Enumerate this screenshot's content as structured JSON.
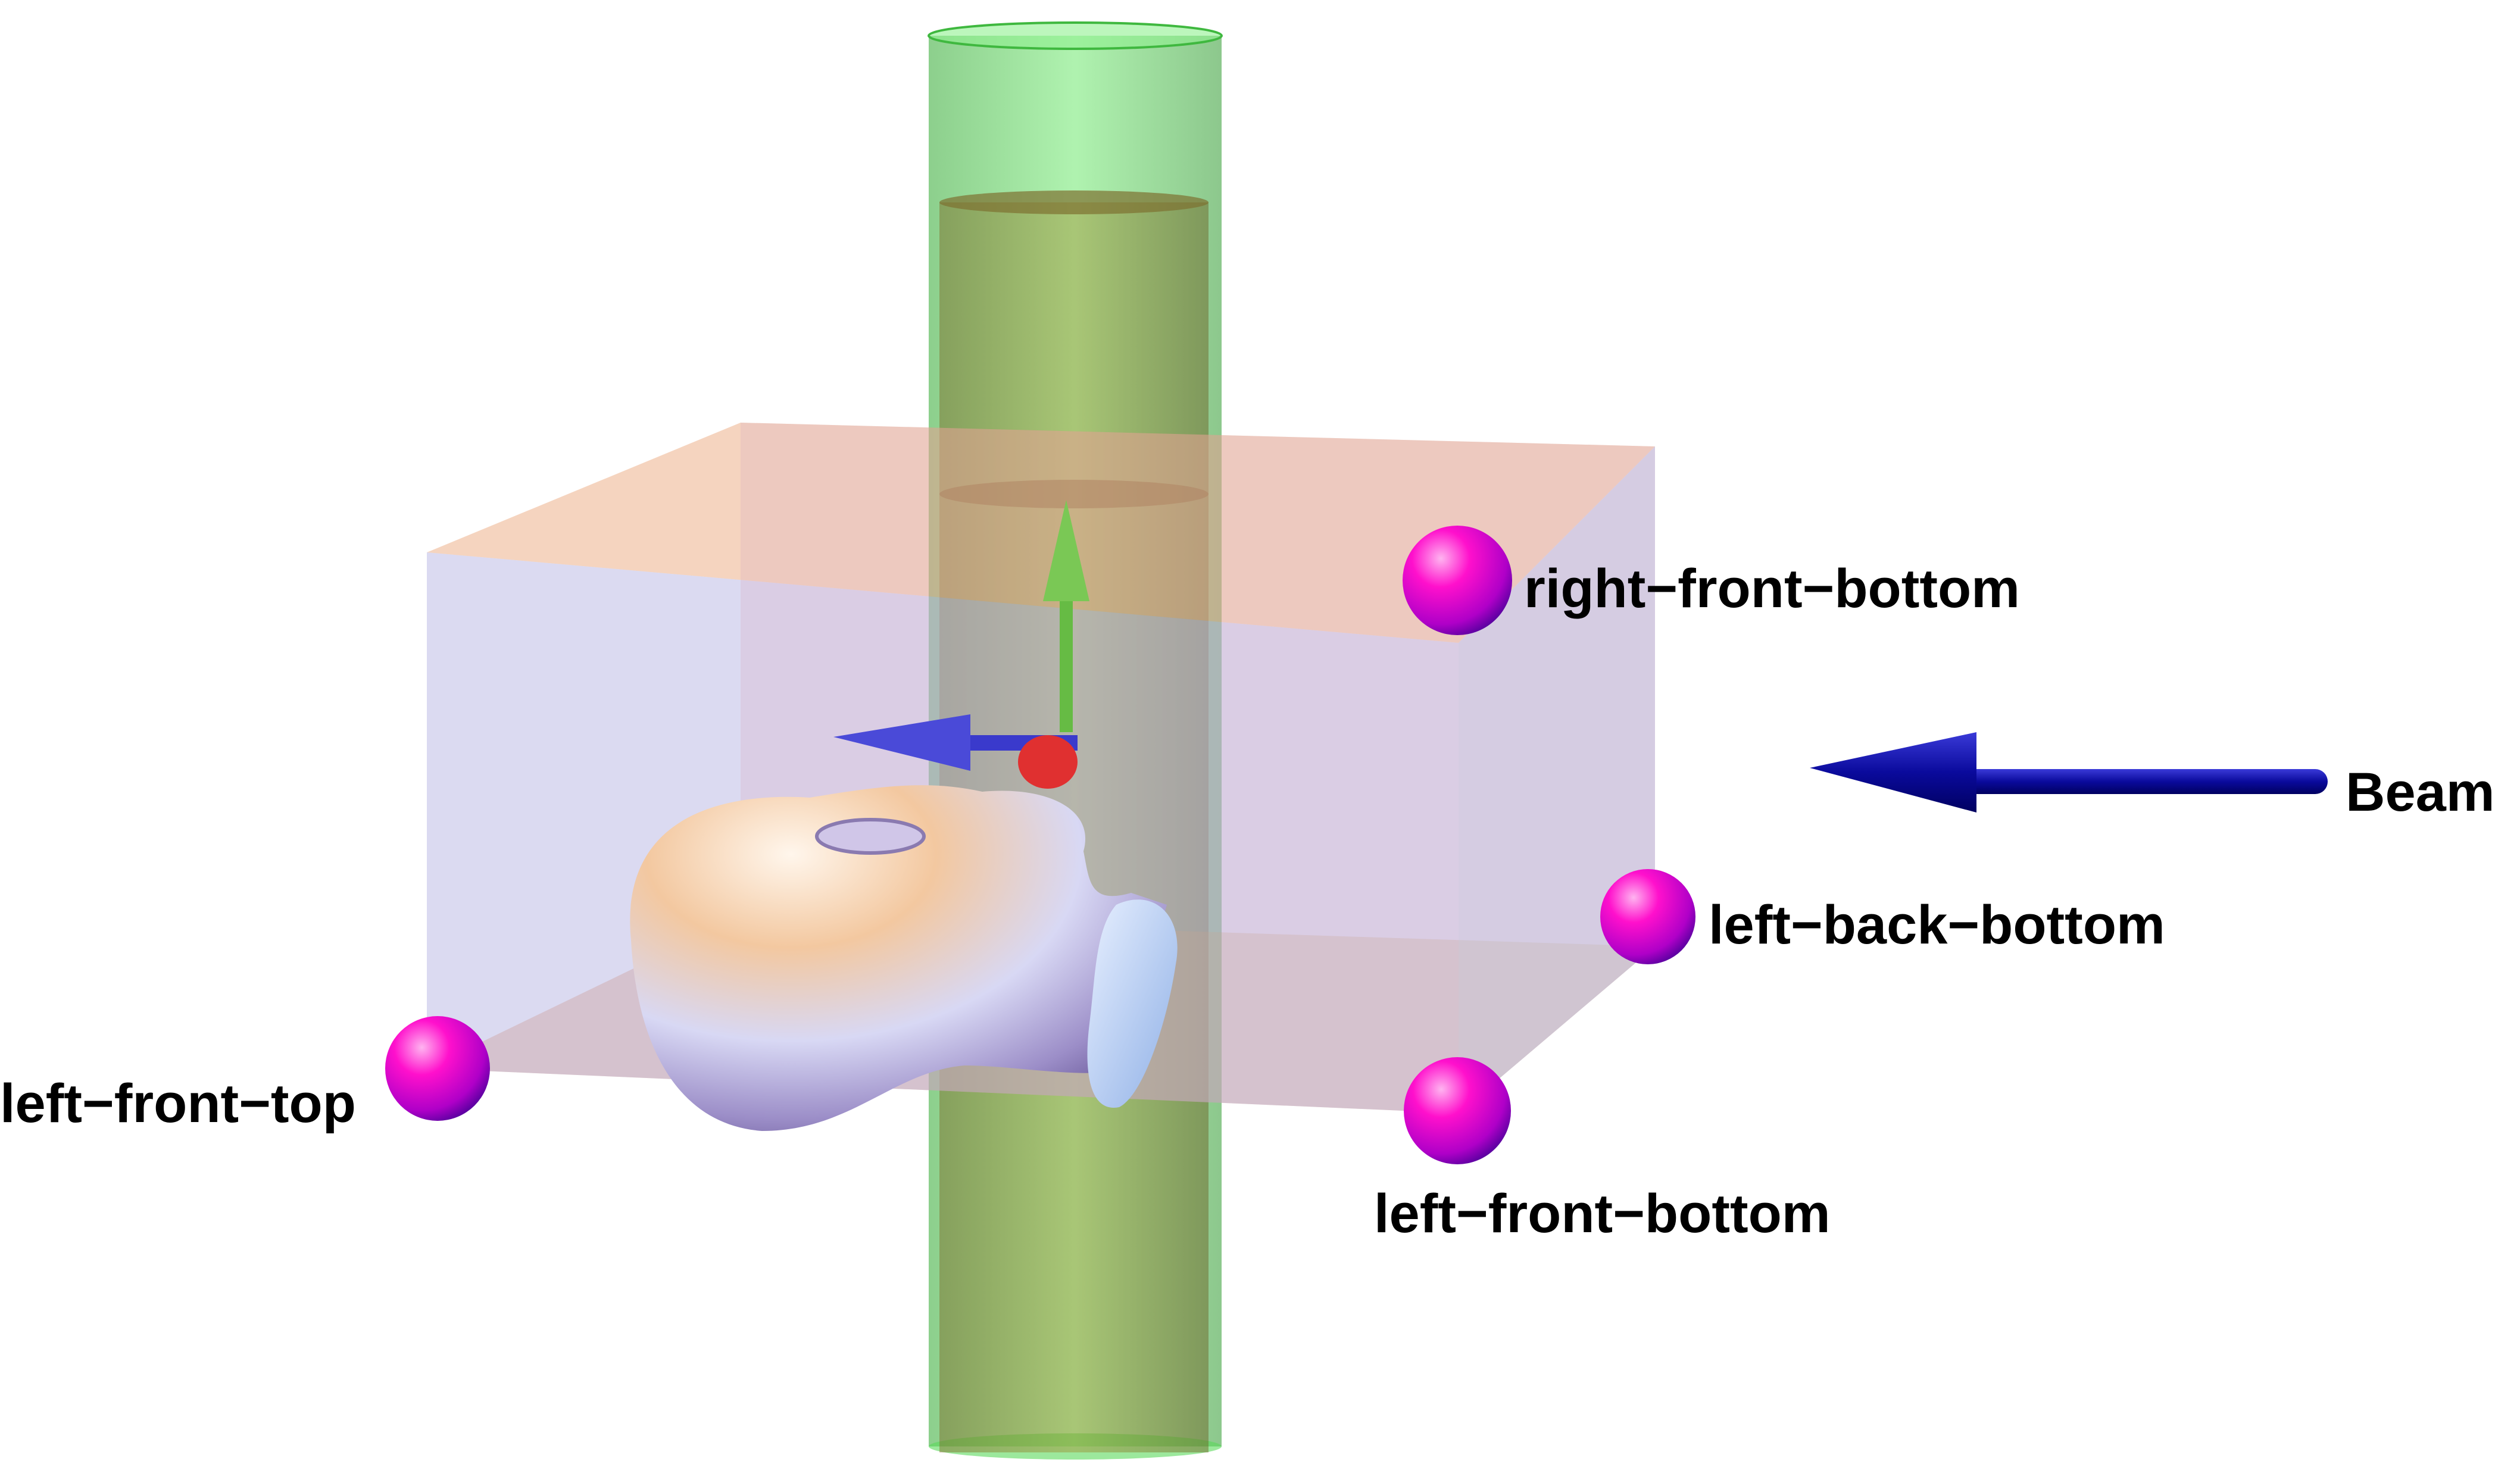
{
  "labels": {
    "right_front_bottom": "right−front−bottom",
    "left_back_bottom": "left−back−bottom",
    "left_front_top": "left−front−top",
    "left_front_bottom": "left−front−bottom",
    "beam": "Beam"
  },
  "colors": {
    "marker": "#ff00c8",
    "beam_arrow": "#0a0a8c",
    "cylinder": "#55dd55",
    "box_face": "#b0aee0",
    "box_edge": "#e8a070",
    "axis_x": "#3a3acc",
    "axis_y": "#66bb44",
    "axis_z": "#e03030"
  },
  "icons": {
    "marker": "sphere-marker-icon",
    "beam": "beam-arrow-icon",
    "axes": "coordinate-axes-icon",
    "head": "head-model-icon"
  }
}
